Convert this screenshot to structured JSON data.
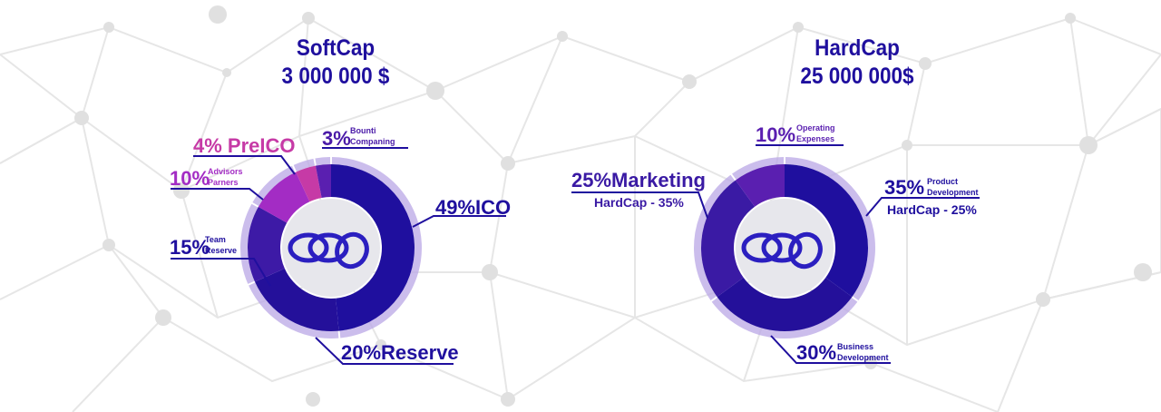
{
  "colors": {
    "navy": "#1f0f9e",
    "purple": "#4a1aa8",
    "violet": "#5a1fb0",
    "magenta": "#b02ac7",
    "pink": "#cc3aa8",
    "light_ring": "#b9a7e6",
    "center_fill": "#e7e7ec",
    "logo": "#2b1fc0"
  },
  "softcap": {
    "title": "SoftCap",
    "amount": "3 000 000 $",
    "labels": {
      "ico": "49%ICO",
      "reserve": "20%Reserve",
      "team_pct": "15%",
      "team_1": "Team",
      "team_2": "Reserve",
      "advisors_pct": "10%",
      "advisors_1": "Advisors",
      "advisors_2": "Parners",
      "preico": "4% PreICO",
      "bounty_pct": "3%",
      "bounty_1": "Bounti",
      "bounty_2": "Companing"
    }
  },
  "hardcap": {
    "title": "HardCap",
    "amount": "25 000 000$",
    "labels": {
      "product_pct": "35%",
      "product_1": "Product",
      "product_2": "Development",
      "product_sub": "HardCap - 25%",
      "business_pct": "30%",
      "business_1": "Business",
      "business_2": "Development",
      "marketing": "25%Marketing",
      "marketing_sub": "HardCap - 35%",
      "operating_pct": "10%",
      "operating_1": "Operating",
      "operating_2": "Expenses"
    }
  },
  "chart_data": [
    {
      "type": "pie",
      "title": "SoftCap",
      "subtitle": "3 000 000 $",
      "slices": [
        {
          "label": "ICO",
          "value": 49,
          "color": "#1f0f9e"
        },
        {
          "label": "Reserve",
          "value": 20,
          "color": "#24109a"
        },
        {
          "label": "Team Reserve",
          "value": 15,
          "color": "#3d1aa6"
        },
        {
          "label": "Advisors Parners",
          "value": 10,
          "color": "#a32cc4"
        },
        {
          "label": "PreICO",
          "value": 4,
          "color": "#c63aa6"
        },
        {
          "label": "Bounti Companing",
          "value": 3,
          "color": "#5a1fb0"
        }
      ]
    },
    {
      "type": "pie",
      "title": "HardCap",
      "subtitle": "25 000 000$",
      "slices": [
        {
          "label": "Product Development",
          "value": 35,
          "color": "#1f0f9e"
        },
        {
          "label": "Business Development",
          "value": 30,
          "color": "#24109a"
        },
        {
          "label": "Marketing",
          "value": 25,
          "color": "#3a1aa4"
        },
        {
          "label": "Operating Expenses",
          "value": 10,
          "color": "#5a1fb0"
        }
      ]
    }
  ]
}
